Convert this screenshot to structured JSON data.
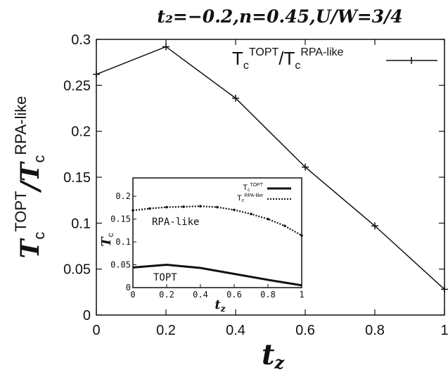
{
  "chart_data": [
    {
      "type": "line",
      "title": "t₂=−0.2,n=0.45,U/W=3/4",
      "xlabel": "t_z",
      "ylabel": "T_c^TOPT / T_c^RPA-like",
      "xlim": [
        0,
        1
      ],
      "ylim": [
        0,
        0.3
      ],
      "x_ticks": [
        "0",
        "0.2",
        "0.4",
        "0.6",
        "0.8",
        "1"
      ],
      "y_ticks": [
        "0",
        "0.05",
        "0.1",
        "0.15",
        "0.2",
        "0.25",
        "0.3"
      ],
      "legend_position": "top-right",
      "series": [
        {
          "name": "Tc^TOPT/Tc^RPA-like",
          "x": [
            0,
            0.2,
            0.4,
            0.6,
            0.8,
            1.0
          ],
          "y": [
            0.262,
            0.292,
            0.236,
            0.161,
            0.097,
            0.028
          ]
        }
      ]
    },
    {
      "type": "line",
      "xlabel": "t_z",
      "ylabel": "T_c",
      "xlim": [
        0,
        1
      ],
      "ylim": [
        0,
        0.24
      ],
      "x_ticks": [
        "0",
        "0.2",
        "0.4",
        "0.6",
        "0.8",
        "1"
      ],
      "y_ticks": [
        "0",
        "0.05",
        "0.1",
        "0.15",
        "0.2"
      ],
      "legend_position": "top-right",
      "annotations": [
        "RPA-like",
        "TOPT"
      ],
      "series": [
        {
          "name": "Tc^TOPT",
          "x": [
            0,
            0.2,
            0.4,
            0.6,
            0.8,
            1.0
          ],
          "y": [
            0.044,
            0.05,
            0.043,
            0.03,
            0.017,
            0.005
          ]
        },
        {
          "name": "Tc^RPA-like",
          "x": [
            0,
            0.1,
            0.2,
            0.3,
            0.4,
            0.5,
            0.6,
            0.7,
            0.8,
            0.9,
            1.0
          ],
          "y": [
            0.169,
            0.173,
            0.176,
            0.177,
            0.178,
            0.176,
            0.17,
            0.161,
            0.15,
            0.135,
            0.114
          ]
        }
      ]
    }
  ]
}
